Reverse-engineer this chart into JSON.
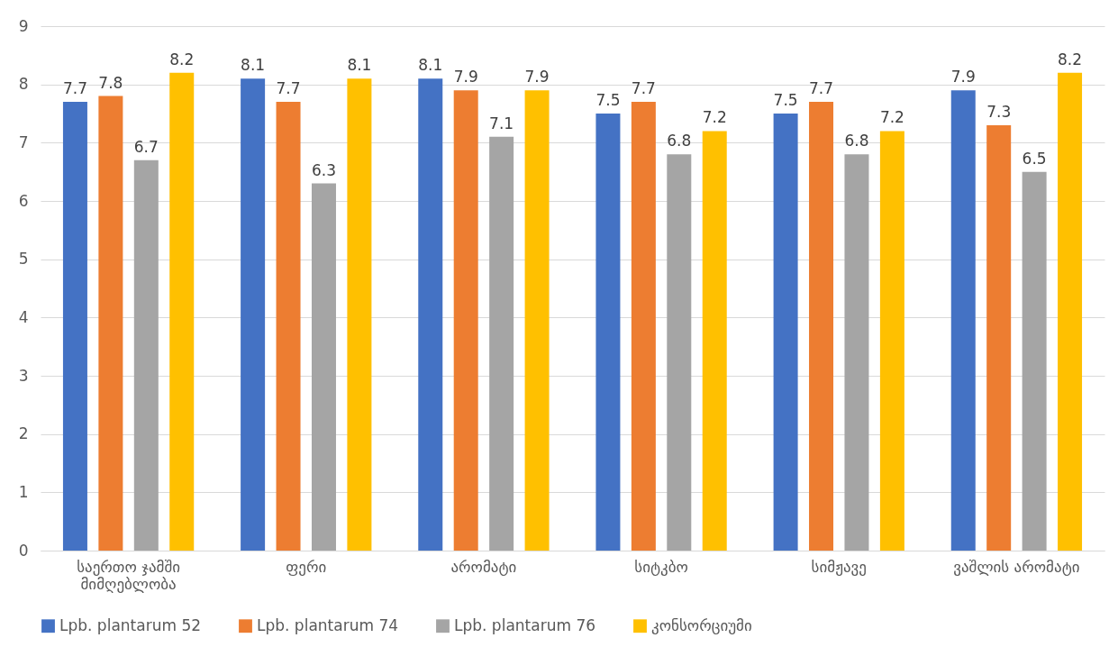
{
  "chart_data": {
    "type": "bar",
    "categories": [
      "საერთო ჯამში\nმიმღებლობა",
      "ფერი",
      "არომატი",
      "სიტკბო",
      "სიმჟავე",
      "ვაშლის არომატი"
    ],
    "series": [
      {
        "name": "Lpb. plantarum 52",
        "color": "#4472c4",
        "values": [
          7.7,
          8.1,
          8.1,
          7.5,
          7.5,
          7.9
        ]
      },
      {
        "name": "Lpb. plantarum 74",
        "color": "#ed7d31",
        "values": [
          7.8,
          7.7,
          7.9,
          7.7,
          7.7,
          7.3
        ]
      },
      {
        "name": "Lpb. plantarum 76",
        "color": "#a5a5a5",
        "values": [
          6.7,
          6.3,
          7.1,
          6.8,
          6.8,
          6.5
        ]
      },
      {
        "name": "კონსორციუმი",
        "color": "#ffc000",
        "values": [
          8.2,
          8.1,
          7.9,
          7.2,
          7.2,
          8.2
        ]
      }
    ],
    "ylim": [
      0,
      9
    ],
    "yticks": [
      0,
      1,
      2,
      3,
      4,
      5,
      6,
      7,
      8,
      9
    ],
    "grid": "y",
    "legend": "bottom",
    "data_labels": true
  }
}
